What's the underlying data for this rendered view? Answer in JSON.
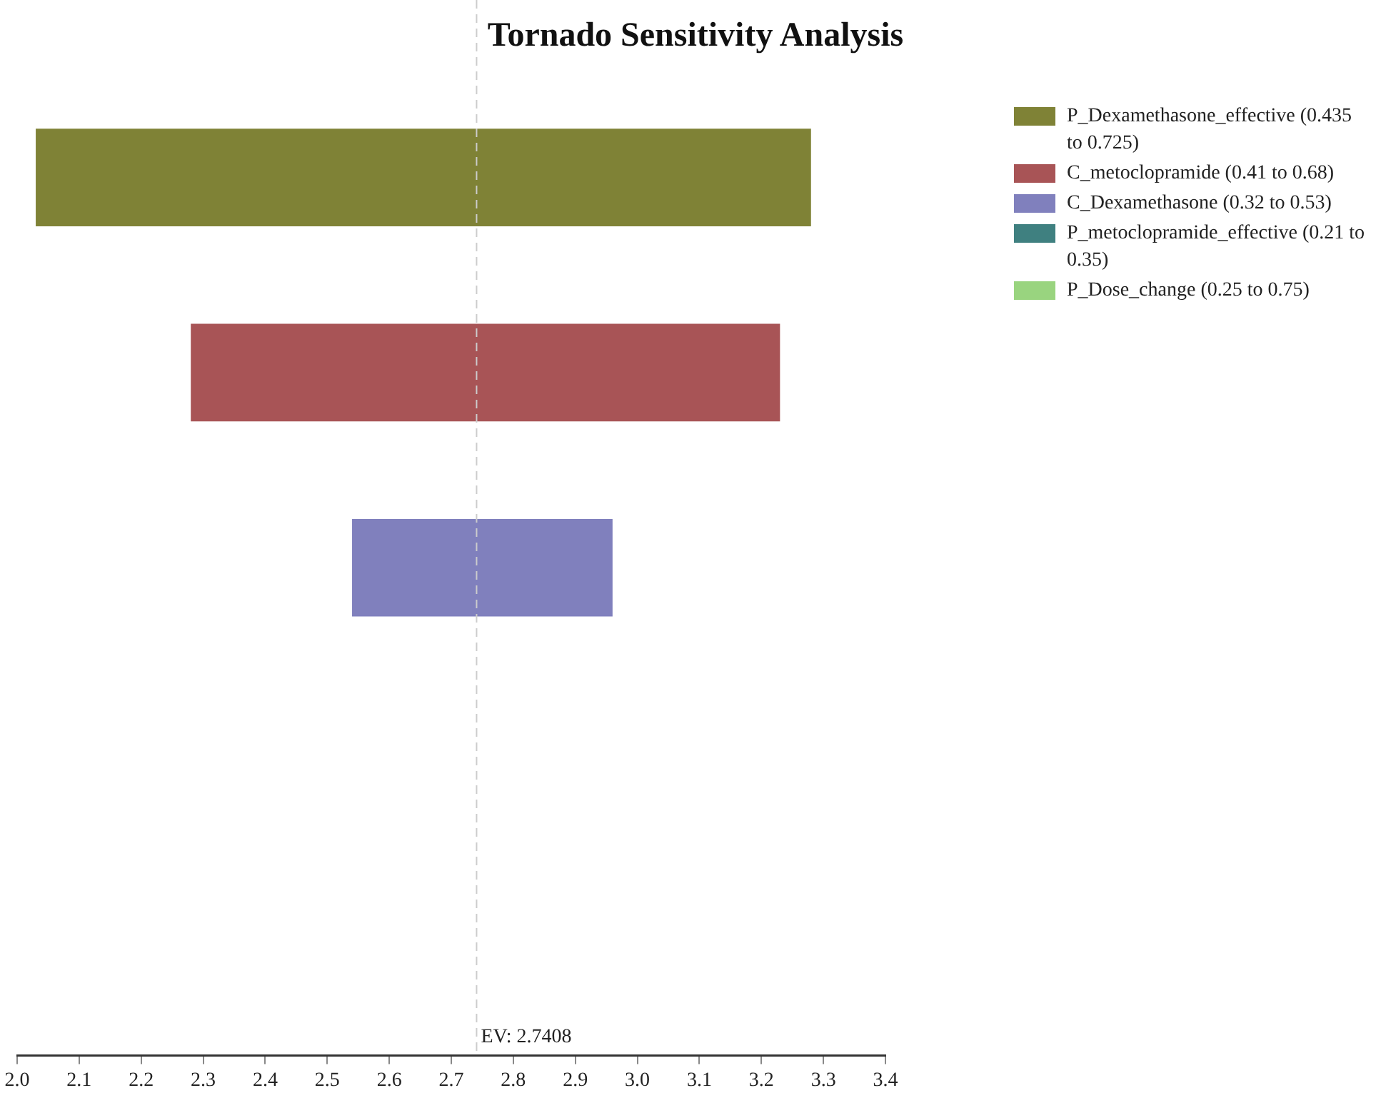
{
  "chart_data": {
    "type": "bar",
    "title": "Tornado Sensitivity Analysis",
    "orientation": "horizontal",
    "categories": [
      null,
      null,
      null,
      null,
      null
    ],
    "series": [
      {
        "name": "P_Dexamethasone_effective (0.435 to 0.725)",
        "color": "#7f8236",
        "base": [
          2.03,
          null,
          null,
          null,
          null
        ],
        "values": [
          1.25,
          null,
          null,
          null,
          null
        ]
      },
      {
        "name": "C_metoclopramide (0.41 to 0.68)",
        "color": "#a85456",
        "base": [
          null,
          2.28,
          null,
          null,
          null
        ],
        "values": [
          null,
          0.95,
          null,
          null,
          null
        ]
      },
      {
        "name": "C_Dexamethasone (0.32 to 0.53)",
        "color": "#8080bd",
        "base": [
          null,
          null,
          2.54,
          null,
          null
        ],
        "values": [
          null,
          null,
          0.42,
          null,
          null
        ]
      },
      {
        "name": "P_metoclopramide_effective (0.21 to 0.35)",
        "color": "#3f8080",
        "base": [
          null,
          null,
          null,
          null,
          null
        ],
        "values": [
          null,
          null,
          null,
          null,
          null
        ]
      },
      {
        "name": "P_Dose_change (0.25 to 0.75)",
        "color": "#99d47f",
        "base": [
          null,
          null,
          null,
          null,
          null
        ],
        "values": [
          null,
          null,
          null,
          null,
          null
        ]
      }
    ],
    "xlim": [
      2.0,
      3.4
    ],
    "xticks": [
      {
        "value": 2,
        "label": "2.0"
      },
      2.1,
      2.2,
      2.3,
      2.4,
      2.5,
      2.6,
      2.7,
      2.8,
      2.9,
      {
        "value": 3,
        "label": "3.0"
      },
      3.1,
      3.2,
      3.3,
      3.4
    ],
    "ref_lines": [
      {
        "axis": "x",
        "value": 2.7408,
        "label": "EV: 2.7408",
        "color": "#cccccc",
        "line_style": "dashed"
      }
    ],
    "legend": "top right"
  }
}
